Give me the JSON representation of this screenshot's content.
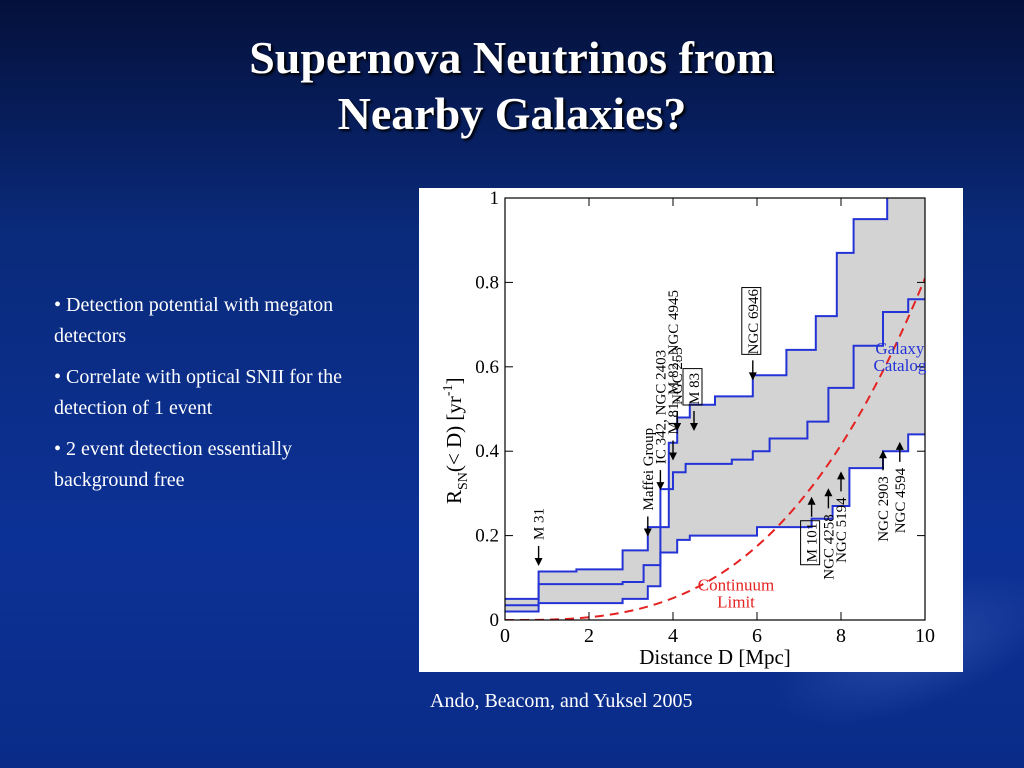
{
  "slide": {
    "title_line1": "Supernova Neutrinos from",
    "title_line2": "Nearby Galaxies?",
    "bullets": [
      "• Detection potential with megaton detectors",
      "• Correlate with optical SNII for the detection of 1 event",
      "• 2 event detection essentially background free"
    ],
    "caption": "Ando, Beacom, and Yuksel 2005"
  },
  "colors": {
    "band_fill": "#d3d3d3",
    "catalog_line": "#2433d6",
    "continuum_line": "#e52222",
    "axis": "#000000"
  },
  "chart_data": {
    "type": "line",
    "xlabel": "Distance D [Mpc]",
    "ylabel_main": "R",
    "ylabel_sub": "SN",
    "ylabel_rest": "(< D)  [yr",
    "ylabel_sup": "-1",
    "ylabel_end": "]",
    "xlim": [
      0,
      10
    ],
    "ylim": [
      0,
      1
    ],
    "xticks": [
      0,
      2,
      4,
      6,
      8,
      10
    ],
    "yticks": [
      0,
      0.2,
      0.4,
      0.6,
      0.8,
      1
    ],
    "ytick_labels": [
      "0",
      "0.2",
      "0.4",
      "0.6",
      "0.8",
      "1"
    ],
    "series": [
      {
        "name": "upper",
        "points": [
          [
            0,
            0.05
          ],
          [
            0.8,
            0.05
          ],
          [
            0.8,
            0.115
          ],
          [
            1.7,
            0.115
          ],
          [
            1.7,
            0.12
          ],
          [
            2.8,
            0.12
          ],
          [
            2.8,
            0.165
          ],
          [
            3.4,
            0.165
          ],
          [
            3.4,
            0.22
          ],
          [
            3.9,
            0.22
          ],
          [
            3.9,
            0.42
          ],
          [
            4.1,
            0.42
          ],
          [
            4.1,
            0.48
          ],
          [
            4.4,
            0.48
          ],
          [
            4.4,
            0.51
          ],
          [
            5.0,
            0.51
          ],
          [
            5.0,
            0.53
          ],
          [
            5.9,
            0.53
          ],
          [
            5.9,
            0.58
          ],
          [
            6.7,
            0.58
          ],
          [
            6.7,
            0.64
          ],
          [
            7.4,
            0.64
          ],
          [
            7.4,
            0.72
          ],
          [
            7.9,
            0.72
          ],
          [
            7.9,
            0.87
          ],
          [
            8.3,
            0.87
          ],
          [
            8.3,
            0.95
          ],
          [
            9.1,
            0.95
          ],
          [
            9.1,
            1.0
          ]
        ]
      },
      {
        "name": "middle",
        "points": [
          [
            0,
            0.035
          ],
          [
            0.8,
            0.035
          ],
          [
            0.8,
            0.085
          ],
          [
            2.8,
            0.085
          ],
          [
            2.8,
            0.09
          ],
          [
            3.3,
            0.09
          ],
          [
            3.3,
            0.13
          ],
          [
            3.7,
            0.13
          ],
          [
            3.7,
            0.31
          ],
          [
            4.0,
            0.31
          ],
          [
            4.0,
            0.35
          ],
          [
            4.3,
            0.35
          ],
          [
            4.3,
            0.37
          ],
          [
            5.4,
            0.37
          ],
          [
            5.4,
            0.38
          ],
          [
            5.9,
            0.38
          ],
          [
            5.9,
            0.4
          ],
          [
            6.3,
            0.4
          ],
          [
            6.3,
            0.43
          ],
          [
            7.2,
            0.43
          ],
          [
            7.2,
            0.47
          ],
          [
            7.7,
            0.47
          ],
          [
            7.7,
            0.55
          ],
          [
            8.3,
            0.55
          ],
          [
            8.3,
            0.65
          ],
          [
            9.0,
            0.65
          ],
          [
            9.0,
            0.73
          ],
          [
            9.6,
            0.73
          ],
          [
            9.6,
            0.76
          ],
          [
            10,
            0.76
          ]
        ]
      },
      {
        "name": "lower",
        "points": [
          [
            0,
            0.02
          ],
          [
            0.8,
            0.02
          ],
          [
            0.8,
            0.04
          ],
          [
            2.8,
            0.04
          ],
          [
            2.8,
            0.05
          ],
          [
            3.4,
            0.05
          ],
          [
            3.4,
            0.08
          ],
          [
            3.7,
            0.08
          ],
          [
            3.7,
            0.16
          ],
          [
            4.1,
            0.16
          ],
          [
            4.1,
            0.19
          ],
          [
            4.4,
            0.19
          ],
          [
            4.4,
            0.2
          ],
          [
            6.0,
            0.2
          ],
          [
            6.0,
            0.22
          ],
          [
            7.3,
            0.22
          ],
          [
            7.3,
            0.24
          ],
          [
            7.8,
            0.24
          ],
          [
            7.8,
            0.27
          ],
          [
            8.2,
            0.27
          ],
          [
            8.2,
            0.36
          ],
          [
            9.0,
            0.36
          ],
          [
            9.0,
            0.4
          ],
          [
            9.6,
            0.4
          ],
          [
            9.6,
            0.44
          ],
          [
            10,
            0.44
          ]
        ]
      },
      {
        "name": "continuum",
        "formula_coeff": 0.00081,
        "formula_exponent": 3
      }
    ],
    "annotations": {
      "galaxy_catalog": [
        "Galaxy",
        "Catalog"
      ],
      "continuum_limit": [
        "Continuum",
        "Limit"
      ],
      "galaxies": [
        {
          "label": "M 31",
          "boxed": false,
          "x": 0.8,
          "y": 0.18,
          "arrow": "down"
        },
        {
          "label": "Maffei Group",
          "boxed": false,
          "x": 3.4,
          "y": 0.25,
          "arrow": "down"
        },
        {
          "label": "IC 342, NGC 2403",
          "boxed_part": "NGC 2403",
          "x": 3.7,
          "y": 0.36,
          "arrow": "down"
        },
        {
          "label": "M 81, M 82, NGC 4945",
          "boxed": false,
          "x": 4.0,
          "y": 0.43,
          "arrow": "down"
        },
        {
          "label": "NGC 253",
          "boxed": false,
          "x": 4.1,
          "y": 0.5,
          "arrow": "down"
        },
        {
          "label": "M 83",
          "boxed": true,
          "x": 4.5,
          "y": 0.5,
          "arrow": "down"
        },
        {
          "label": "NGC 6946",
          "boxed": true,
          "x": 5.9,
          "y": 0.62,
          "arrow": "down"
        },
        {
          "label": "M 101",
          "boxed": true,
          "x": 7.3,
          "y": 0.24,
          "arrow": "up"
        },
        {
          "label": "NGC 4258",
          "boxed": false,
          "x": 7.7,
          "y": 0.26,
          "arrow": "up"
        },
        {
          "label": "NGC 5194",
          "boxed": false,
          "x": 8.0,
          "y": 0.3,
          "arrow": "up"
        },
        {
          "label": "NGC 2903",
          "boxed": false,
          "x": 9.0,
          "y": 0.35,
          "arrow": "up"
        },
        {
          "label": "NGC 4594",
          "boxed": false,
          "x": 9.4,
          "y": 0.37,
          "arrow": "up"
        }
      ]
    }
  }
}
